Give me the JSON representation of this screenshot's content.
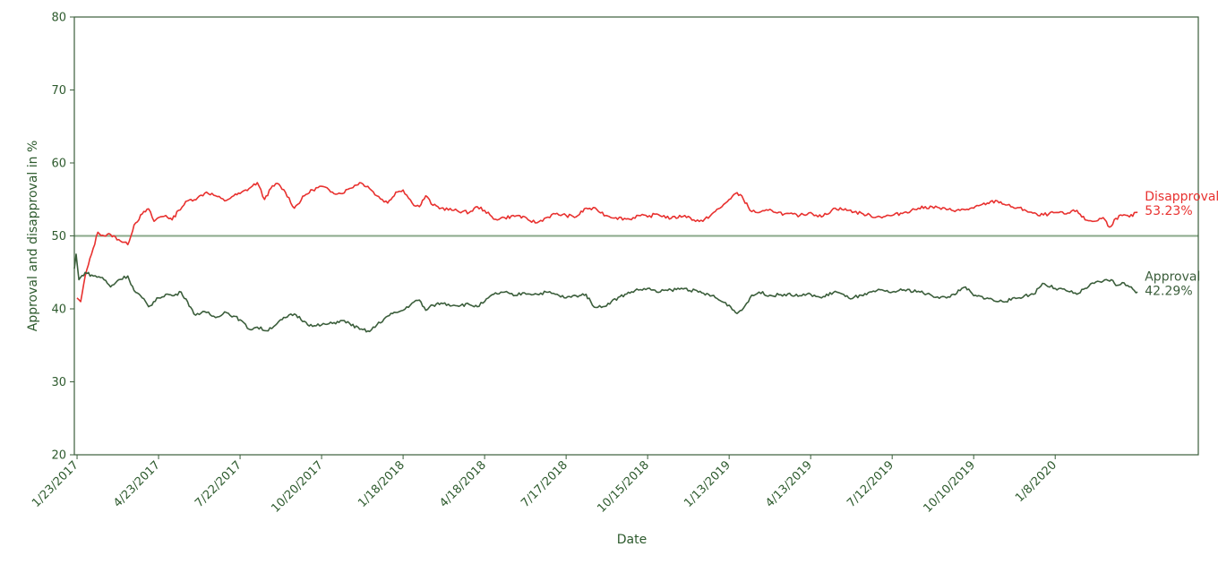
{
  "chart_data": {
    "type": "line",
    "xlabel": "Date",
    "ylabel": "Approval and disapproval in %",
    "ylim": [
      20,
      80
    ],
    "yticks": [
      20,
      30,
      40,
      50,
      60,
      70,
      80
    ],
    "xlim": [
      "2017-01-20",
      "2020-06-14"
    ],
    "xtick_labels": [
      "1/23/2017",
      "4/23/2017",
      "7/22/2017",
      "10/20/2017",
      "1/18/2018",
      "4/18/2018",
      "7/17/2018",
      "10/15/2018",
      "1/13/2019",
      "4/13/2019",
      "7/12/2019",
      "10/10/2019",
      "1/8/2020"
    ],
    "grid": false,
    "reference_line": {
      "y": 50,
      "color": "#8aa88a"
    },
    "series": [
      {
        "name": "Disapproval",
        "end_value_label": "53.23%",
        "color": "#e8312f",
        "points": [
          [
            "2017-01-23",
            41.5
          ],
          [
            "2017-01-27",
            41.0
          ],
          [
            "2017-02-01",
            44.5
          ],
          [
            "2017-02-08",
            47.5
          ],
          [
            "2017-02-15",
            50.5
          ],
          [
            "2017-02-22",
            50.0
          ],
          [
            "2017-03-01",
            50.2
          ],
          [
            "2017-03-10",
            49.5
          ],
          [
            "2017-03-20",
            48.8
          ],
          [
            "2017-03-27",
            51.5
          ],
          [
            "2017-04-05",
            53.0
          ],
          [
            "2017-04-12",
            53.7
          ],
          [
            "2017-04-18",
            52.0
          ],
          [
            "2017-04-23",
            52.5
          ],
          [
            "2017-05-01",
            52.8
          ],
          [
            "2017-05-08",
            52.2
          ],
          [
            "2017-05-15",
            53.5
          ],
          [
            "2017-05-25",
            54.8
          ],
          [
            "2017-06-05",
            55.2
          ],
          [
            "2017-06-15",
            56.0
          ],
          [
            "2017-06-25",
            55.5
          ],
          [
            "2017-07-05",
            54.8
          ],
          [
            "2017-07-15",
            55.5
          ],
          [
            "2017-07-22",
            55.8
          ],
          [
            "2017-08-01",
            56.5
          ],
          [
            "2017-08-10",
            57.3
          ],
          [
            "2017-08-18",
            55.0
          ],
          [
            "2017-08-25",
            56.5
          ],
          [
            "2017-09-01",
            57.2
          ],
          [
            "2017-09-10",
            56.0
          ],
          [
            "2017-09-20",
            53.8
          ],
          [
            "2017-10-01",
            55.5
          ],
          [
            "2017-10-10",
            56.3
          ],
          [
            "2017-10-20",
            56.8
          ],
          [
            "2017-11-01",
            56.0
          ],
          [
            "2017-11-10",
            55.8
          ],
          [
            "2017-11-20",
            56.5
          ],
          [
            "2017-12-01",
            57.3
          ],
          [
            "2017-12-10",
            56.8
          ],
          [
            "2017-12-20",
            55.5
          ],
          [
            "2018-01-01",
            54.5
          ],
          [
            "2018-01-10",
            56.0
          ],
          [
            "2018-01-18",
            56.3
          ],
          [
            "2018-01-28",
            54.5
          ],
          [
            "2018-02-05",
            54.0
          ],
          [
            "2018-02-12",
            55.5
          ],
          [
            "2018-02-20",
            54.2
          ],
          [
            "2018-03-01",
            53.8
          ],
          [
            "2018-03-15",
            53.5
          ],
          [
            "2018-04-01",
            53.2
          ],
          [
            "2018-04-10",
            54.0
          ],
          [
            "2018-04-18",
            53.5
          ],
          [
            "2018-04-28",
            52.3
          ],
          [
            "2018-05-10",
            52.5
          ],
          [
            "2018-05-25",
            52.8
          ],
          [
            "2018-06-05",
            52.2
          ],
          [
            "2018-06-15",
            51.8
          ],
          [
            "2018-06-25",
            52.5
          ],
          [
            "2018-07-05",
            53.0
          ],
          [
            "2018-07-17",
            52.8
          ],
          [
            "2018-07-28",
            52.6
          ],
          [
            "2018-08-08",
            53.8
          ],
          [
            "2018-08-20",
            53.6
          ],
          [
            "2018-08-30",
            52.8
          ],
          [
            "2018-09-10",
            52.5
          ],
          [
            "2018-09-25",
            52.3
          ],
          [
            "2018-10-05",
            52.8
          ],
          [
            "2018-10-15",
            52.6
          ],
          [
            "2018-10-25",
            53.0
          ],
          [
            "2018-11-10",
            52.4
          ],
          [
            "2018-11-25",
            52.8
          ],
          [
            "2018-12-05",
            52.2
          ],
          [
            "2018-12-15",
            52.0
          ],
          [
            "2018-12-25",
            53.0
          ],
          [
            "2019-01-05",
            54.0
          ],
          [
            "2019-01-13",
            55.0
          ],
          [
            "2019-01-20",
            55.8
          ],
          [
            "2019-01-27",
            55.5
          ],
          [
            "2019-02-05",
            53.5
          ],
          [
            "2019-02-15",
            53.2
          ],
          [
            "2019-03-01",
            53.5
          ],
          [
            "2019-03-15",
            53.0
          ],
          [
            "2019-04-01",
            52.8
          ],
          [
            "2019-04-13",
            53.2
          ],
          [
            "2019-04-25",
            52.6
          ],
          [
            "2019-05-10",
            53.8
          ],
          [
            "2019-05-25",
            53.5
          ],
          [
            "2019-06-10",
            53.0
          ],
          [
            "2019-06-25",
            52.6
          ],
          [
            "2019-07-12",
            52.8
          ],
          [
            "2019-07-25",
            53.2
          ],
          [
            "2019-08-10",
            53.8
          ],
          [
            "2019-08-25",
            54.0
          ],
          [
            "2019-09-10",
            53.6
          ],
          [
            "2019-09-25",
            53.5
          ],
          [
            "2019-10-10",
            53.8
          ],
          [
            "2019-10-25",
            54.5
          ],
          [
            "2019-11-05",
            54.8
          ],
          [
            "2019-11-20",
            54.0
          ],
          [
            "2019-12-05",
            53.6
          ],
          [
            "2019-12-20",
            52.8
          ],
          [
            "2020-01-01",
            53.0
          ],
          [
            "2020-01-08",
            53.2
          ],
          [
            "2020-01-20",
            53.0
          ],
          [
            "2020-02-01",
            53.5
          ],
          [
            "2020-02-10",
            52.2
          ],
          [
            "2020-02-20",
            52.0
          ],
          [
            "2020-03-01",
            52.5
          ],
          [
            "2020-03-08",
            51.2
          ],
          [
            "2020-03-15",
            52.4
          ],
          [
            "2020-03-22",
            52.8
          ],
          [
            "2020-03-30",
            52.6
          ],
          [
            "2020-04-08",
            53.23
          ]
        ]
      },
      {
        "name": "Approval",
        "end_value_label": "42.29%",
        "color": "#3b5e3b",
        "points": [
          [
            "2017-01-20",
            45.5
          ],
          [
            "2017-01-22",
            47.5
          ],
          [
            "2017-01-25",
            44.0
          ],
          [
            "2017-02-01",
            45.0
          ],
          [
            "2017-02-10",
            44.5
          ],
          [
            "2017-02-20",
            44.3
          ],
          [
            "2017-03-01",
            43.0
          ],
          [
            "2017-03-10",
            44.0
          ],
          [
            "2017-03-20",
            44.5
          ],
          [
            "2017-03-27",
            42.5
          ],
          [
            "2017-04-05",
            41.5
          ],
          [
            "2017-04-12",
            40.3
          ],
          [
            "2017-04-23",
            41.5
          ],
          [
            "2017-05-01",
            42.0
          ],
          [
            "2017-05-10",
            41.8
          ],
          [
            "2017-05-18",
            42.3
          ],
          [
            "2017-05-25",
            41.0
          ],
          [
            "2017-06-01",
            39.3
          ],
          [
            "2017-06-15",
            39.5
          ],
          [
            "2017-06-25",
            38.8
          ],
          [
            "2017-07-05",
            39.6
          ],
          [
            "2017-07-15",
            39.0
          ],
          [
            "2017-07-22",
            38.5
          ],
          [
            "2017-08-01",
            37.2
          ],
          [
            "2017-08-10",
            37.5
          ],
          [
            "2017-08-20",
            37.0
          ],
          [
            "2017-09-01",
            38.0
          ],
          [
            "2017-09-10",
            38.8
          ],
          [
            "2017-09-20",
            39.3
          ],
          [
            "2017-10-01",
            38.3
          ],
          [
            "2017-10-10",
            37.6
          ],
          [
            "2017-10-20",
            37.8
          ],
          [
            "2017-11-01",
            38.0
          ],
          [
            "2017-11-10",
            38.4
          ],
          [
            "2017-11-20",
            38.0
          ],
          [
            "2017-12-01",
            37.2
          ],
          [
            "2017-12-12",
            36.9
          ],
          [
            "2017-12-20",
            37.8
          ],
          [
            "2018-01-01",
            39.0
          ],
          [
            "2018-01-10",
            39.5
          ],
          [
            "2018-01-18",
            39.8
          ],
          [
            "2018-01-28",
            40.8
          ],
          [
            "2018-02-05",
            41.2
          ],
          [
            "2018-02-12",
            39.8
          ],
          [
            "2018-02-20",
            40.5
          ],
          [
            "2018-03-01",
            40.8
          ],
          [
            "2018-03-15",
            40.5
          ],
          [
            "2018-04-01",
            40.6
          ],
          [
            "2018-04-10",
            40.3
          ],
          [
            "2018-04-18",
            41.0
          ],
          [
            "2018-04-28",
            42.0
          ],
          [
            "2018-05-10",
            42.3
          ],
          [
            "2018-05-20",
            41.8
          ],
          [
            "2018-06-01",
            42.2
          ],
          [
            "2018-06-15",
            42.0
          ],
          [
            "2018-06-25",
            42.3
          ],
          [
            "2018-07-05",
            42.0
          ],
          [
            "2018-07-17",
            41.5
          ],
          [
            "2018-07-28",
            41.8
          ],
          [
            "2018-08-08",
            42.0
          ],
          [
            "2018-08-15",
            40.5
          ],
          [
            "2018-08-25",
            40.2
          ],
          [
            "2018-09-05",
            41.0
          ],
          [
            "2018-09-20",
            42.0
          ],
          [
            "2018-10-01",
            42.5
          ],
          [
            "2018-10-15",
            42.8
          ],
          [
            "2018-10-25",
            42.3
          ],
          [
            "2018-11-10",
            42.6
          ],
          [
            "2018-11-25",
            42.8
          ],
          [
            "2018-12-10",
            42.3
          ],
          [
            "2018-12-25",
            41.8
          ],
          [
            "2019-01-05",
            41.0
          ],
          [
            "2019-01-13",
            40.5
          ],
          [
            "2019-01-20",
            39.5
          ],
          [
            "2019-01-27",
            39.8
          ],
          [
            "2019-02-05",
            41.5
          ],
          [
            "2019-02-15",
            42.3
          ],
          [
            "2019-03-01",
            41.8
          ],
          [
            "2019-03-15",
            42.0
          ],
          [
            "2019-04-01",
            41.8
          ],
          [
            "2019-04-13",
            42.0
          ],
          [
            "2019-04-25",
            41.5
          ],
          [
            "2019-05-10",
            42.4
          ],
          [
            "2019-05-25",
            41.5
          ],
          [
            "2019-06-10",
            41.8
          ],
          [
            "2019-06-25",
            42.5
          ],
          [
            "2019-07-12",
            42.3
          ],
          [
            "2019-07-25",
            42.6
          ],
          [
            "2019-08-10",
            42.4
          ],
          [
            "2019-08-25",
            41.8
          ],
          [
            "2019-09-10",
            41.5
          ],
          [
            "2019-09-25",
            42.5
          ],
          [
            "2019-10-01",
            43.0
          ],
          [
            "2019-10-10",
            41.8
          ],
          [
            "2019-10-25",
            41.5
          ],
          [
            "2019-11-05",
            41.0
          ],
          [
            "2019-11-20",
            41.2
          ],
          [
            "2019-12-05",
            41.8
          ],
          [
            "2019-12-15",
            42.0
          ],
          [
            "2019-12-25",
            43.5
          ],
          [
            "2020-01-08",
            42.8
          ],
          [
            "2020-01-20",
            42.5
          ],
          [
            "2020-02-01",
            42.0
          ],
          [
            "2020-02-10",
            42.8
          ],
          [
            "2020-02-20",
            43.5
          ],
          [
            "2020-03-01",
            43.8
          ],
          [
            "2020-03-10",
            44.0
          ],
          [
            "2020-03-15",
            43.2
          ],
          [
            "2020-03-22",
            43.6
          ],
          [
            "2020-03-30",
            43.0
          ],
          [
            "2020-04-08",
            42.29
          ]
        ]
      }
    ]
  }
}
